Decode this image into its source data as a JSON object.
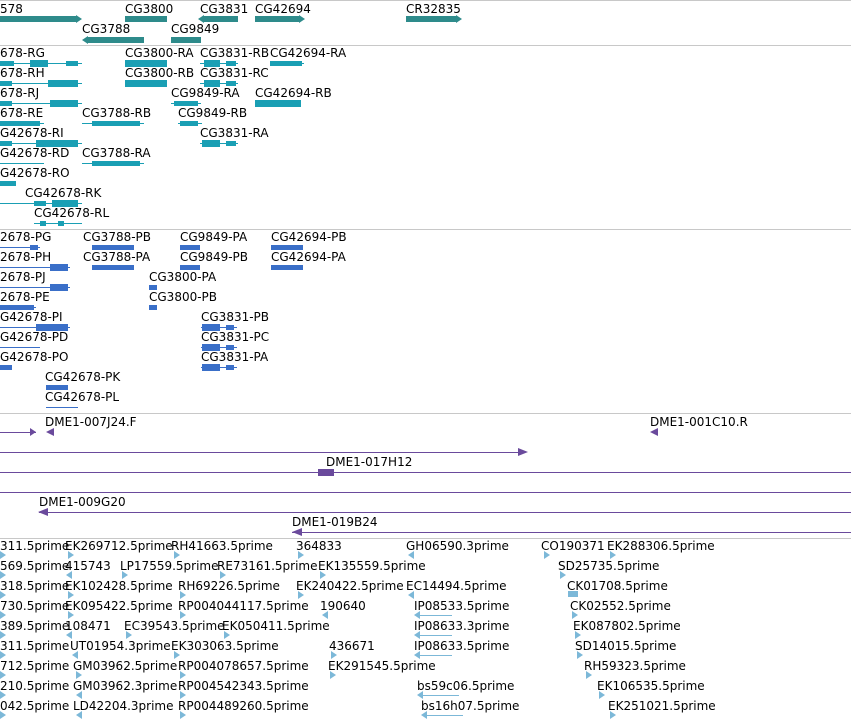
{
  "colors": {
    "gene": "#2e8b8b",
    "mrna": "#1a9fb4",
    "cds": "#3a6fc8",
    "clone": "#6a4a9c",
    "est": "#7cb8d8",
    "divider": "#c8c8c8"
  },
  "tracks": {
    "genes": {
      "features": [
        {
          "label": "578"
        },
        {
          "label": "CG3800"
        },
        {
          "label": "CG3831"
        },
        {
          "label": "CG42694"
        },
        {
          "label": "CR32835"
        },
        {
          "label": "CG3788"
        },
        {
          "label": "CG9849"
        }
      ]
    },
    "transcripts": {
      "features": [
        {
          "label": "678-RG"
        },
        {
          "label": "678-RH"
        },
        {
          "label": "678-RJ"
        },
        {
          "label": "678-RE"
        },
        {
          "label": "G42678-RI"
        },
        {
          "label": "G42678-RD"
        },
        {
          "label": "G42678-RO"
        },
        {
          "label": "CG42678-RK"
        },
        {
          "label": "CG42678-RL"
        },
        {
          "label": "CG3800-RA"
        },
        {
          "label": "CG3800-RB"
        },
        {
          "label": "CG3831-RB"
        },
        {
          "label": "CG42694-RA"
        },
        {
          "label": "CG3831-RC"
        },
        {
          "label": "CG9849-RA"
        },
        {
          "label": "CG42694-RB"
        },
        {
          "label": "CG3788-RB"
        },
        {
          "label": "CG9849-RB"
        },
        {
          "label": "CG3831-RA"
        },
        {
          "label": "CG3788-RA"
        }
      ]
    },
    "proteins": {
      "features": [
        {
          "label": "2678-PG"
        },
        {
          "label": "2678-PH"
        },
        {
          "label": "2678-PJ"
        },
        {
          "label": "2678-PE"
        },
        {
          "label": "G42678-PI"
        },
        {
          "label": "G42678-PD"
        },
        {
          "label": "G42678-PO"
        },
        {
          "label": "CG42678-PK"
        },
        {
          "label": "CG42678-PL"
        },
        {
          "label": "CG3788-PB"
        },
        {
          "label": "CG3788-PA"
        },
        {
          "label": "CG9849-PA"
        },
        {
          "label": "CG9849-PB"
        },
        {
          "label": "CG42694-PB"
        },
        {
          "label": "CG42694-PA"
        },
        {
          "label": "CG3800-PA"
        },
        {
          "label": "CG3800-PB"
        },
        {
          "label": "CG3831-PB"
        },
        {
          "label": "CG3831-PC"
        },
        {
          "label": "CG3831-PA"
        }
      ]
    },
    "clones": {
      "features": [
        {
          "label": "DME1-007J24.F"
        },
        {
          "label": "DME1-001C10.R"
        },
        {
          "label": "DME1-017H12"
        },
        {
          "label": "DME1-009G20"
        },
        {
          "label": "DME1-019B24"
        }
      ]
    },
    "ests": {
      "features": [
        {
          "label": "311.5prime"
        },
        {
          "label": "EK269712.5prime"
        },
        {
          "label": "RH41663.5prime"
        },
        {
          "label": "364833"
        },
        {
          "label": "GH06590.3prime"
        },
        {
          "label": "CO190371"
        },
        {
          "label": "EK288306.5prime"
        },
        {
          "label": "569.5prime"
        },
        {
          "label": "415743"
        },
        {
          "label": "LP17559.5prime"
        },
        {
          "label": "RE73161.5prime"
        },
        {
          "label": "EK135559.5prime"
        },
        {
          "label": "SD25735.5prime"
        },
        {
          "label": "318.5prime"
        },
        {
          "label": "EK102428.5prime"
        },
        {
          "label": "RH69226.5prime"
        },
        {
          "label": "EK240422.5prime"
        },
        {
          "label": "EC14494.5prime"
        },
        {
          "label": "CK01708.5prime"
        },
        {
          "label": "730.5prime"
        },
        {
          "label": "EK095422.5prime"
        },
        {
          "label": "RP004044117.5prime"
        },
        {
          "label": "190640"
        },
        {
          "label": "IP08533.5prime"
        },
        {
          "label": "CK02552.5prime"
        },
        {
          "label": "389.5prime"
        },
        {
          "label": "108471"
        },
        {
          "label": "EC39543.5prime"
        },
        {
          "label": "EK050411.5prime"
        },
        {
          "label": "IP08633.3prime"
        },
        {
          "label": "EK087802.5prime"
        },
        {
          "label": "311.5prime"
        },
        {
          "label": "UT01954.3prime"
        },
        {
          "label": "EK303063.5prime"
        },
        {
          "label": "436671"
        },
        {
          "label": "IP08633.5prime"
        },
        {
          "label": "SD14015.5prime"
        },
        {
          "label": "712.5prime"
        },
        {
          "label": "GM03962.5prime"
        },
        {
          "label": "RP004078657.5prime"
        },
        {
          "label": "EK291545.5prime"
        },
        {
          "label": "RH59323.5prime"
        },
        {
          "label": "210.5prime"
        },
        {
          "label": "GM03962.3prime"
        },
        {
          "label": "RP004542343.5prime"
        },
        {
          "label": "bs59c06.5prime"
        },
        {
          "label": "EK106535.5prime"
        },
        {
          "label": "042.5prime"
        },
        {
          "label": "LD42204.3prime"
        },
        {
          "label": "RP004489260.5prime"
        },
        {
          "label": "bs16h07.5prime"
        },
        {
          "label": "EK251021.5prime"
        }
      ]
    }
  }
}
